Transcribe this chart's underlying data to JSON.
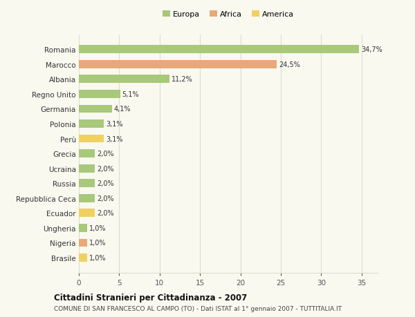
{
  "categories": [
    "Romania",
    "Marocco",
    "Albania",
    "Regno Unito",
    "Germania",
    "Polonia",
    "Perù",
    "Grecia",
    "Ucraina",
    "Russia",
    "Repubblica Ceca",
    "Ecuador",
    "Ungheria",
    "Nigeria",
    "Brasile"
  ],
  "values": [
    34.7,
    24.5,
    11.2,
    5.1,
    4.1,
    3.1,
    3.1,
    2.0,
    2.0,
    2.0,
    2.0,
    2.0,
    1.0,
    1.0,
    1.0
  ],
  "labels": [
    "34,7%",
    "24,5%",
    "11,2%",
    "5,1%",
    "4,1%",
    "3,1%",
    "3,1%",
    "2,0%",
    "2,0%",
    "2,0%",
    "2,0%",
    "2,0%",
    "1,0%",
    "1,0%",
    "1,0%"
  ],
  "colors": [
    "#a8c87a",
    "#e8a878",
    "#a8c87a",
    "#a8c87a",
    "#a8c87a",
    "#a8c87a",
    "#f0d060",
    "#a8c87a",
    "#a8c87a",
    "#a8c87a",
    "#a8c87a",
    "#f0d060",
    "#a8c87a",
    "#e8a878",
    "#f0d060"
  ],
  "legend": [
    {
      "label": "Europa",
      "color": "#a8c87a"
    },
    {
      "label": "Africa",
      "color": "#e8a878"
    },
    {
      "label": "America",
      "color": "#f0d060"
    }
  ],
  "title": "Cittadini Stranieri per Cittadinanza - 2007",
  "subtitle": "COMUNE DI SAN FRANCESCO AL CAMPO (TO) - Dati ISTAT al 1° gennaio 2007 - TUTTITALIA.IT",
  "xlim": [
    0,
    37
  ],
  "xticks": [
    0,
    5,
    10,
    15,
    20,
    25,
    30,
    35
  ],
  "background_color": "#f9f9f0",
  "grid_color": "#ddddcc",
  "bar_height": 0.55
}
